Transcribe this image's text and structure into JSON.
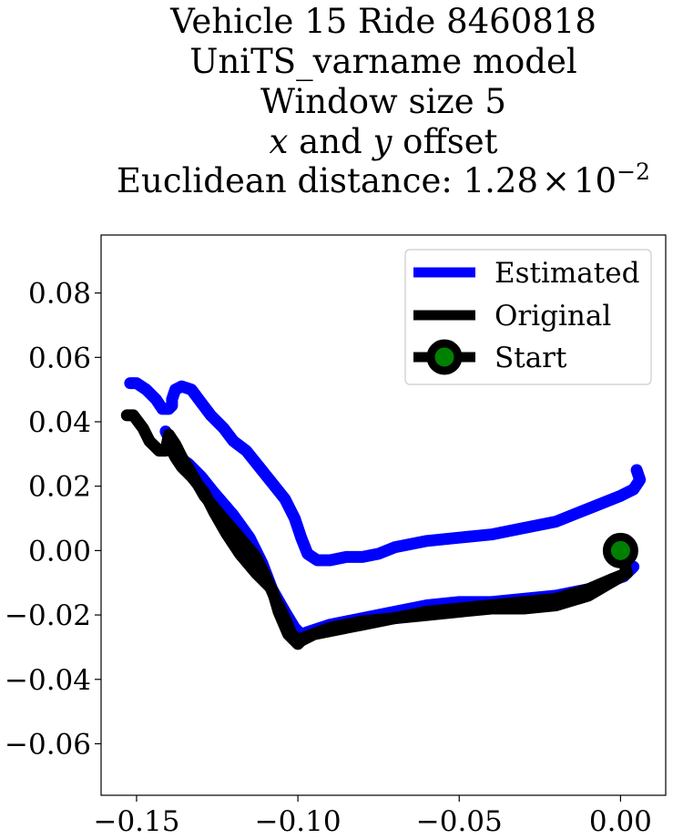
{
  "chart_data": {
    "type": "line",
    "title_lines": [
      "Vehicle 15 Ride 8460818",
      "UniTS_varname model",
      "Window size 5"
    ],
    "title_line4": {
      "var_x": "x",
      "conj": " and ",
      "var_y": "y",
      "rest": " offset"
    },
    "title_line5": {
      "prefix": "Euclidean distance: ",
      "mantissa": "1.28",
      "times": "×",
      "base": "10",
      "exponent": "−2"
    },
    "xlabel": "",
    "ylabel": "",
    "xlim": [
      -0.161,
      0.014
    ],
    "ylim": [
      -0.076,
      0.098
    ],
    "x_ticks": [
      -0.15,
      -0.1,
      -0.05,
      0.0
    ],
    "x_tick_labels": [
      "−0.15",
      "−0.10",
      "−0.05",
      "0.00"
    ],
    "y_ticks": [
      0.08,
      0.06,
      0.04,
      0.02,
      0.0,
      -0.02,
      -0.04,
      -0.06
    ],
    "y_tick_labels": [
      "0.08",
      "0.06",
      "0.04",
      "0.02",
      "0.00",
      "−0.02",
      "−0.04",
      "−0.06"
    ],
    "grid": false,
    "legend_position": "top-right",
    "series": [
      {
        "name": "Estimated",
        "color": "#0000ff",
        "points": [
          [
            0.005,
            0.025
          ],
          [
            0.006,
            0.022
          ],
          [
            0.004,
            0.019
          ],
          [
            0.0,
            0.017
          ],
          [
            -0.01,
            0.013
          ],
          [
            -0.02,
            0.009
          ],
          [
            -0.03,
            0.007
          ],
          [
            -0.04,
            0.005
          ],
          [
            -0.05,
            0.004
          ],
          [
            -0.06,
            0.003
          ],
          [
            -0.07,
            0.001
          ],
          [
            -0.075,
            -0.001
          ],
          [
            -0.08,
            -0.002
          ],
          [
            -0.085,
            -0.002
          ],
          [
            -0.09,
            -0.003
          ],
          [
            -0.094,
            -0.003
          ],
          [
            -0.097,
            -0.001
          ],
          [
            -0.099,
            0.004
          ],
          [
            -0.101,
            0.01
          ],
          [
            -0.104,
            0.016
          ],
          [
            -0.108,
            0.021
          ],
          [
            -0.112,
            0.026
          ],
          [
            -0.116,
            0.031
          ],
          [
            -0.12,
            0.034
          ],
          [
            -0.123,
            0.038
          ],
          [
            -0.127,
            0.042
          ],
          [
            -0.13,
            0.046
          ],
          [
            -0.133,
            0.05
          ],
          [
            -0.136,
            0.051
          ],
          [
            -0.138,
            0.05
          ],
          [
            -0.139,
            0.047
          ],
          [
            -0.139,
            0.045
          ],
          [
            -0.14,
            0.044
          ],
          [
            -0.142,
            0.044
          ],
          [
            -0.144,
            0.047
          ],
          [
            -0.147,
            0.05
          ],
          [
            -0.15,
            0.052
          ],
          [
            -0.152,
            0.052
          ]
        ]
      },
      {
        "name": "Estimated",
        "color": "#0000ff",
        "points": [
          [
            0.004,
            -0.005
          ],
          [
            0.001,
            -0.008
          ],
          [
            -0.01,
            -0.012
          ],
          [
            -0.02,
            -0.014
          ],
          [
            -0.03,
            -0.015
          ],
          [
            -0.04,
            -0.016
          ],
          [
            -0.05,
            -0.016
          ],
          [
            -0.06,
            -0.017
          ],
          [
            -0.07,
            -0.019
          ],
          [
            -0.08,
            -0.021
          ],
          [
            -0.09,
            -0.023
          ],
          [
            -0.096,
            -0.025
          ],
          [
            -0.099,
            -0.026
          ],
          [
            -0.101,
            -0.024
          ],
          [
            -0.104,
            -0.019
          ],
          [
            -0.108,
            -0.012
          ],
          [
            -0.111,
            -0.004
          ],
          [
            -0.115,
            0.004
          ],
          [
            -0.12,
            0.011
          ],
          [
            -0.126,
            0.018
          ],
          [
            -0.13,
            0.023
          ],
          [
            -0.134,
            0.027
          ],
          [
            -0.137,
            0.029
          ],
          [
            -0.139,
            0.033
          ],
          [
            -0.141,
            0.037
          ]
        ]
      },
      {
        "name": "Original",
        "color": "#000000",
        "points": [
          [
            0.002,
            -0.007
          ],
          [
            -0.003,
            -0.009
          ],
          [
            -0.01,
            -0.012
          ],
          [
            -0.02,
            -0.015
          ],
          [
            -0.03,
            -0.016
          ],
          [
            -0.04,
            -0.017
          ],
          [
            -0.05,
            -0.018
          ],
          [
            -0.06,
            -0.019
          ],
          [
            -0.07,
            -0.021
          ],
          [
            -0.08,
            -0.023
          ],
          [
            -0.09,
            -0.025
          ],
          [
            -0.095,
            -0.026
          ],
          [
            -0.099,
            -0.028
          ],
          [
            -0.102,
            -0.026
          ],
          [
            -0.104,
            -0.021
          ],
          [
            -0.107,
            -0.015
          ],
          [
            -0.11,
            -0.008
          ],
          [
            -0.113,
            -0.002
          ],
          [
            -0.118,
            0.004
          ],
          [
            -0.124,
            0.011
          ],
          [
            -0.129,
            0.017
          ],
          [
            -0.133,
            0.024
          ],
          [
            -0.136,
            0.029
          ],
          [
            -0.138,
            0.033
          ],
          [
            -0.14,
            0.036
          ],
          [
            -0.141,
            0.031
          ],
          [
            -0.143,
            0.031
          ],
          [
            -0.146,
            0.034
          ],
          [
            -0.148,
            0.038
          ],
          [
            -0.151,
            0.042
          ],
          [
            -0.153,
            0.042
          ]
        ]
      },
      {
        "name": "Original",
        "color": "#000000",
        "points": [
          [
            0.0,
            0.0
          ],
          [
            0.002,
            -0.007
          ],
          [
            -0.01,
            -0.014
          ],
          [
            -0.02,
            -0.017
          ],
          [
            -0.03,
            -0.018
          ],
          [
            -0.04,
            -0.018
          ],
          [
            -0.05,
            -0.019
          ],
          [
            -0.06,
            -0.02
          ],
          [
            -0.07,
            -0.021
          ],
          [
            -0.08,
            -0.022
          ],
          [
            -0.09,
            -0.024
          ],
          [
            -0.098,
            -0.027
          ],
          [
            -0.1,
            -0.029
          ],
          [
            -0.103,
            -0.026
          ],
          [
            -0.106,
            -0.019
          ],
          [
            -0.108,
            -0.012
          ],
          [
            -0.113,
            -0.007
          ],
          [
            -0.118,
            -0.001
          ],
          [
            -0.122,
            0.005
          ],
          [
            -0.126,
            0.012
          ],
          [
            -0.129,
            0.018
          ],
          [
            -0.133,
            0.023
          ],
          [
            -0.136,
            0.026
          ],
          [
            -0.138,
            0.029
          ],
          [
            -0.14,
            0.033
          ]
        ]
      }
    ],
    "start_marker": {
      "name": "Start",
      "x": 0.0,
      "y": 0.0,
      "edge_color": "#000000",
      "fill_color": "#008000"
    },
    "legend": [
      {
        "label": "Estimated",
        "color": "#0000ff",
        "marker": false
      },
      {
        "label": "Original",
        "color": "#000000",
        "marker": false
      },
      {
        "label": "Start",
        "color": "#000000",
        "marker": true,
        "marker_fill": "#008000"
      }
    ]
  }
}
